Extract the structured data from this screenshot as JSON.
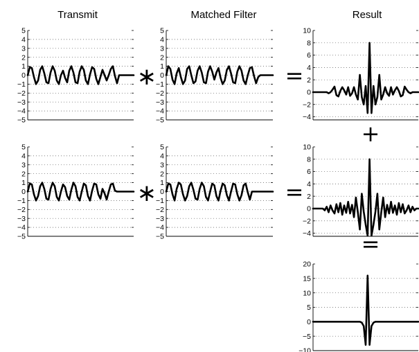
{
  "column_titles": [
    "Transmit",
    "Matched Filter",
    "Result"
  ],
  "operators": {
    "convolve": "∗",
    "equals": "=",
    "plus": "+"
  },
  "chart_data": [
    {
      "id": "transmit-1",
      "type": "line",
      "ylim": [
        -5,
        5
      ],
      "yticks": [
        -5,
        -4,
        -3,
        -2,
        -1,
        0,
        1,
        2,
        3,
        4,
        5
      ],
      "grid": "dotted-horizontal",
      "series": [
        {
          "values": [
            0,
            0.9,
            0.8,
            -0.2,
            -1,
            -0.6,
            0.6,
            1,
            0.2,
            -0.8,
            -0.9,
            0.3,
            1,
            0.5,
            -0.6,
            -1,
            0,
            0.5,
            -0.3,
            -0.8,
            0.5,
            1,
            0.3,
            -0.8,
            -0.9,
            0.4,
            1,
            0.6,
            -0.6,
            -1,
            0.1,
            0.9,
            0.7,
            -0.4,
            -1,
            -0.2,
            0.6,
            0,
            -0.6,
            0,
            0.7,
            1,
            -0.1,
            -0.9,
            0,
            0,
            0,
            0,
            0,
            0,
            0,
            0
          ]
        }
      ]
    },
    {
      "id": "matched-1",
      "type": "line",
      "ylim": [
        -5,
        5
      ],
      "yticks": [
        -5,
        -4,
        -3,
        -2,
        -1,
        0,
        1,
        2,
        3,
        4,
        5
      ],
      "grid": "dotted-horizontal",
      "series": [
        {
          "values": [
            0,
            1,
            0.7,
            -0.5,
            -1,
            0.2,
            0.8,
            -0.2,
            -1,
            -0.6,
            0.7,
            1,
            0,
            -0.9,
            -0.7,
            0.5,
            1,
            0.3,
            -0.8,
            -0.9,
            0.4,
            1,
            0.4,
            -0.5,
            0.3,
            0.8,
            -0.3,
            -1,
            -0.6,
            0.6,
            1,
            0.2,
            -0.8,
            -0.9,
            0.4,
            1,
            0.5,
            -0.6,
            -1,
            0,
            0.8,
            0.9,
            -0.1,
            -0.9,
            -0.2,
            0,
            0,
            0,
            0,
            0,
            0,
            0
          ]
        }
      ]
    },
    {
      "id": "result-1",
      "type": "line",
      "ylim": [
        -4.5,
        10
      ],
      "yticks": [
        -4,
        -2,
        0,
        2,
        4,
        6,
        8,
        10
      ],
      "grid": "dotted-horizontal",
      "series": [
        {
          "values": [
            0,
            0,
            0,
            0,
            0,
            0,
            0,
            0,
            -0.2,
            0,
            0.4,
            0.9,
            -0.5,
            -0.7,
            0.2,
            0.8,
            0.3,
            -0.4,
            0.8,
            -0.6,
            -0.2,
            0.8,
            -0.4,
            -1.2,
            2.8,
            -0.8,
            -2,
            1,
            -3.4,
            8,
            -3.4,
            1,
            -2,
            -0.8,
            2.8,
            -1.2,
            -0.4,
            0.8,
            -0.2,
            -0.6,
            0.8,
            -0.4,
            0.3,
            0.8,
            0.2,
            -0.7,
            -0.5,
            0.9,
            0.4,
            0,
            -0.2,
            0,
            0,
            0,
            0
          ]
        }
      ]
    },
    {
      "id": "transmit-2",
      "type": "line",
      "ylim": [
        -5,
        5
      ],
      "yticks": [
        -5,
        -4,
        -3,
        -2,
        -1,
        0,
        1,
        2,
        3,
        4,
        5
      ],
      "grid": "dotted-horizontal",
      "series": [
        {
          "values": [
            0,
            0.9,
            0.8,
            -0.3,
            -1,
            -0.5,
            0.6,
            1,
            0.3,
            -0.8,
            -0.9,
            0.3,
            1,
            0.6,
            -0.6,
            -1,
            0,
            0.8,
            0.5,
            -0.5,
            -0.9,
            0.2,
            1,
            0.6,
            -0.6,
            -1,
            0,
            0.9,
            0.7,
            -0.5,
            -1,
            0.1,
            0.9,
            0.8,
            -0.3,
            -0.8,
            0.3,
            -0.2,
            -0.9,
            0,
            0.8,
            0.9,
            0.1,
            0,
            0,
            0,
            0,
            0,
            0,
            0,
            0,
            0
          ]
        }
      ]
    },
    {
      "id": "matched-2",
      "type": "line",
      "ylim": [
        -5,
        5
      ],
      "yticks": [
        -5,
        -4,
        -3,
        -2,
        -1,
        0,
        1,
        2,
        3,
        4,
        5
      ],
      "grid": "dotted-horizontal",
      "series": [
        {
          "values": [
            0,
            0.9,
            0.8,
            -0.3,
            -1,
            0.3,
            1,
            0.8,
            -0.3,
            -1,
            -0.5,
            0.6,
            1,
            0.2,
            -0.8,
            -0.9,
            0.3,
            1,
            0.6,
            -0.6,
            -1,
            0,
            0.9,
            0.7,
            -0.5,
            -1,
            0.1,
            0.9,
            0.7,
            -0.4,
            -1,
            0,
            0.9,
            0.8,
            -0.3,
            -1,
            -0.4,
            0.7,
            0.9,
            -0.1,
            -0.9,
            0,
            0,
            0,
            0,
            0,
            0,
            0,
            0,
            0,
            0,
            0
          ]
        }
      ]
    },
    {
      "id": "result-2",
      "type": "line",
      "ylim": [
        -4.5,
        10
      ],
      "yticks": [
        -4,
        -2,
        0,
        2,
        4,
        6,
        8,
        10
      ],
      "grid": "dotted-horizontal",
      "series": [
        {
          "values": [
            0,
            0,
            0,
            0,
            0,
            0,
            -0.3,
            0.3,
            -0.6,
            0.5,
            -0.3,
            -0.8,
            0.7,
            -0.6,
            0.9,
            -1,
            0.5,
            -0.7,
            1.1,
            -0.8,
            0.6,
            -1.4,
            1.8,
            -0.6,
            -3.4,
            2.4,
            -0.5,
            -2.6,
            -4.4,
            8,
            -4.4,
            -2.6,
            -0.5,
            2.4,
            -3.4,
            -0.6,
            1.8,
            -1.4,
            0.6,
            -0.8,
            1.1,
            -0.7,
            0.5,
            -1,
            0.9,
            -0.6,
            0.7,
            -0.8,
            -0.3,
            0.5,
            -0.6,
            0.3,
            -0.3,
            0,
            0
          ]
        }
      ]
    },
    {
      "id": "sum",
      "type": "line",
      "ylim": [
        -10,
        20
      ],
      "yticks": [
        -10,
        -5,
        0,
        5,
        10,
        15,
        20
      ],
      "grid": "dotted-horizontal",
      "series": [
        {
          "values": [
            0,
            0,
            0,
            0,
            0,
            0,
            0,
            0,
            0,
            0,
            0,
            0,
            0,
            0,
            0,
            0,
            0,
            0,
            0,
            0,
            0,
            0,
            0,
            0,
            0,
            -0.3,
            -1.5,
            -8,
            16,
            -8,
            -1.5,
            -0.3,
            0,
            0,
            0,
            0,
            0,
            0,
            0,
            0,
            0,
            0,
            0,
            0,
            0,
            0,
            0,
            0,
            0,
            0,
            0,
            0,
            0,
            0,
            0
          ]
        }
      ]
    }
  ]
}
